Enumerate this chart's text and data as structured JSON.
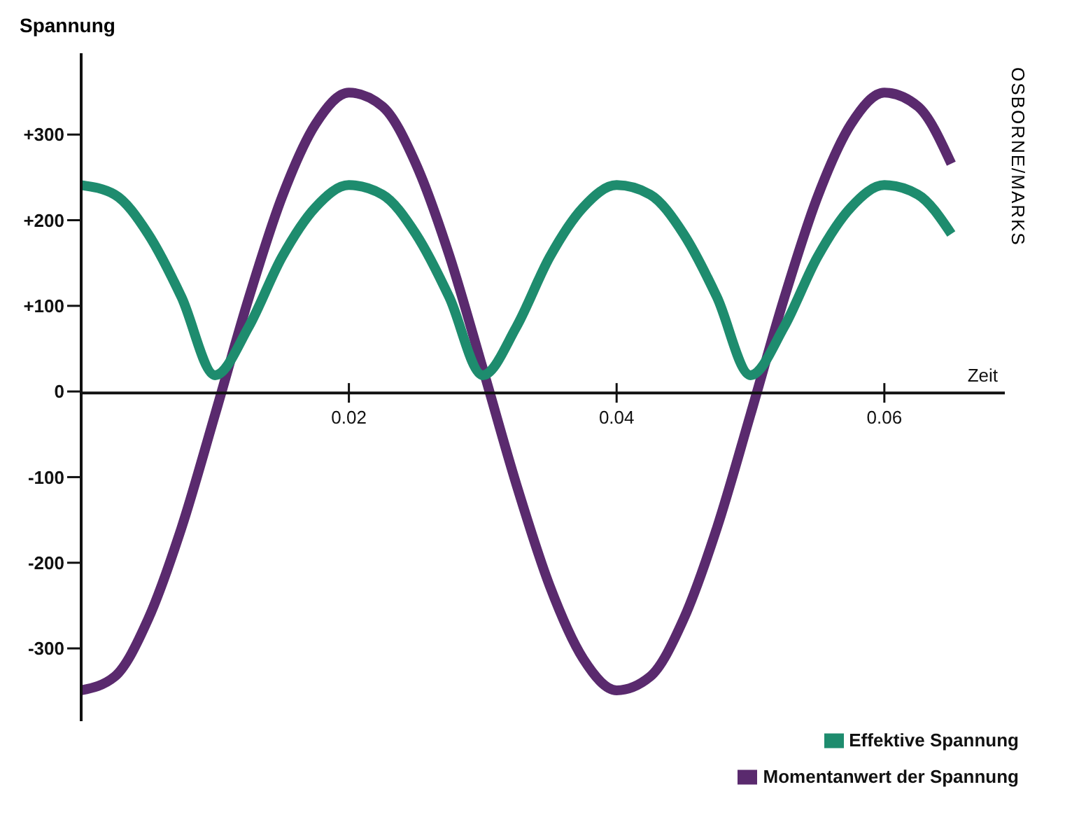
{
  "chart_data": {
    "type": "line",
    "xlabel": "Zeit",
    "ylabel": "Spannung",
    "x": [
      0,
      0.0025,
      0.005,
      0.0075,
      0.01,
      0.0125,
      0.015,
      0.0175,
      0.02,
      0.0225,
      0.025,
      0.0275,
      0.03,
      0.0325,
      0.035,
      0.0375,
      0.04,
      0.0425,
      0.045,
      0.0475,
      0.05,
      0.0525,
      0.055,
      0.0575,
      0.06,
      0.0625,
      0.065
    ],
    "series": [
      {
        "name": "Momentanwert der Spannung",
        "color": "#5a2a6e",
        "values": [
          -349,
          -333,
          -266,
          -159,
          -27,
          108,
          227,
          312,
          349,
          333,
          266,
          159,
          27,
          -108,
          -227,
          -312,
          -349,
          -333,
          -266,
          -159,
          -27,
          108,
          227,
          312,
          349,
          333,
          266
        ]
      },
      {
        "name": "Effektive Spannung",
        "color": "#1e8c6e",
        "values": [
          241,
          230,
          184,
          110,
          19,
          75,
          157,
          215,
          241,
          230,
          184,
          110,
          19,
          75,
          157,
          215,
          241,
          230,
          184,
          110,
          19,
          75,
          157,
          215,
          241,
          230,
          184
        ]
      }
    ],
    "xlim": [
      0,
      0.069
    ],
    "xticks": [
      0.02,
      0.04,
      0.06
    ],
    "ylim": [
      -385,
      395
    ],
    "yticks": [
      {
        "value": 300,
        "label": "+300"
      },
      {
        "value": 200,
        "label": "+200"
      },
      {
        "value": 100,
        "label": "+100"
      },
      0,
      -100,
      -200,
      -300
    ],
    "grid": false,
    "legend": "bottom right",
    "marker": "none",
    "line_style": "solid",
    "annotations": [
      "OSBORNE/MARKS"
    ]
  }
}
